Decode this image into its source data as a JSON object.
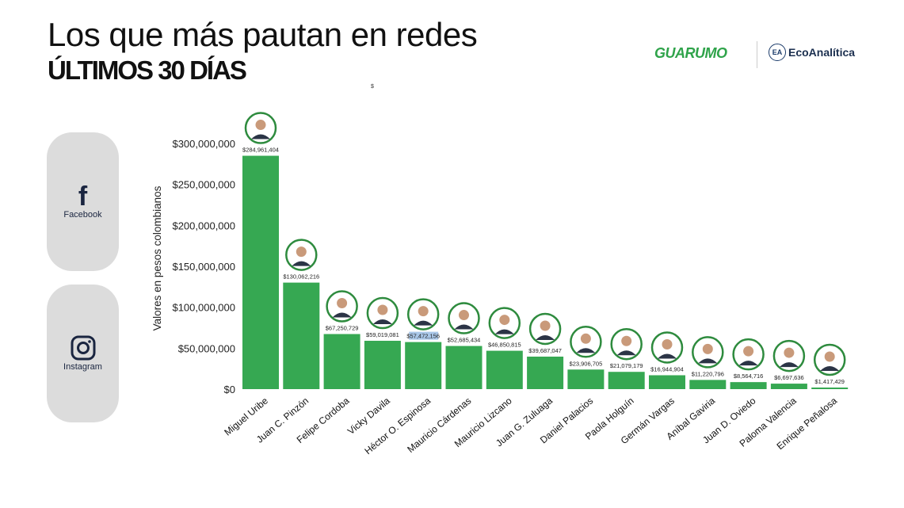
{
  "header": {
    "title": "Los que más pautan en redes",
    "subtitle": "ÚLTIMOS 30 DÍAS",
    "tiny_mark": "$"
  },
  "logos": {
    "guarumo": "GUARUMO",
    "eco_icon": "EA",
    "eco_text": "EcoAnalítica"
  },
  "platforms": {
    "facebook_label": "Facebook",
    "instagram_label": "Instagram"
  },
  "colors": {
    "bar": "#36a852",
    "ring": "#2e8b3e",
    "pill": "#dcdcdc"
  },
  "chart_data": {
    "type": "bar",
    "ylabel": "Valores en pesos colombianos",
    "ylim": [
      0,
      300000000
    ],
    "ytick_values": [
      0,
      50000000,
      100000000,
      150000000,
      200000000,
      250000000,
      300000000
    ],
    "ytick_labels": [
      "$0",
      "$50,000,000",
      "$100,000,000",
      "$150,000,000",
      "$200,000,000",
      "$250,000,000",
      "$300,000,000"
    ],
    "categories": [
      "Miguel Uribe",
      "Juan C. Pinzón",
      "Felipe Cordoba",
      "Vicky Davila",
      "Héctor O. Espinosa",
      "Mauricio Cárdenas",
      "Mauricio Lizcano",
      "Juan G. Zuluaga",
      "Daniel Palacios",
      "Paola Holguín",
      "Germán Vargas",
      "Aníbal Gaviria",
      "Juan D. Oviedo",
      "Paloma Valencia",
      "Enrique Peñalosa"
    ],
    "values": [
      284961404,
      130062216,
      67250729,
      59019081,
      57472156,
      52685434,
      46850815,
      39687047,
      23906705,
      21079179,
      16944904,
      11220796,
      8564716,
      6697636,
      1417429
    ],
    "value_labels": [
      "$284,961,404",
      "$130,062,216",
      "$67,250,729",
      "$59,019,081",
      "$57,472,156",
      "$52,685,434",
      "$46,850,815",
      "$39,687,047",
      "$23,906,705",
      "$21,079,179",
      "$16,944,904",
      "$11,220,796",
      "$8,564,716",
      "$6,697,636",
      "$1,417,429"
    ],
    "highlighted_label_index": 4
  }
}
